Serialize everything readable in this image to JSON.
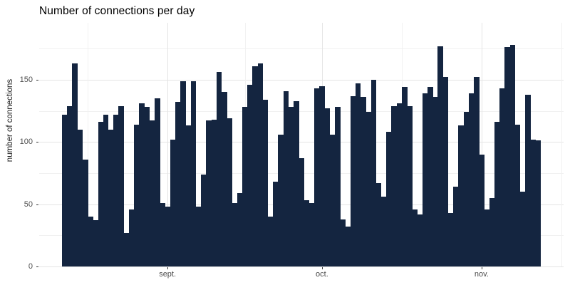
{
  "title": "Number of connections per day",
  "y_axis": {
    "label": "number of connections"
  },
  "chart_data": {
    "type": "bar",
    "title": "Number of connections per day",
    "xlabel": "",
    "ylabel": "number of connections",
    "bar_color": "#142540",
    "background": "#ffffff",
    "grid": "on",
    "legend": "none",
    "ylim": [
      0,
      195
    ],
    "y_major_ticks": [
      0,
      50,
      100,
      150
    ],
    "y_minor_ticks": [
      25,
      75,
      125,
      175
    ],
    "x_tick_labels": [
      "sept.",
      "oct.",
      "nov."
    ],
    "x_tick_day_offsets": [
      20.5,
      50.5,
      81.5
    ],
    "x_minor_day_offsets": [
      5,
      35.5,
      66,
      97
    ],
    "values": [
      122,
      129,
      163,
      110,
      86,
      40,
      37,
      116,
      122,
      110,
      122,
      129,
      27,
      46,
      114,
      131,
      128,
      117,
      135,
      51,
      48,
      102,
      132,
      149,
      113,
      149,
      48,
      74,
      117,
      118,
      156,
      140,
      119,
      51,
      59,
      128,
      146,
      161,
      163,
      134,
      40,
      68,
      106,
      141,
      128,
      133,
      87,
      53,
      51,
      143,
      145,
      127,
      106,
      128,
      38,
      32,
      137,
      147,
      136,
      124,
      150,
      67,
      56,
      108,
      129,
      131,
      144,
      129,
      46,
      42,
      139,
      144,
      136,
      177,
      152,
      43,
      64,
      113,
      124,
      139,
      152,
      90,
      46,
      55,
      116,
      143,
      176,
      178,
      114,
      60,
      138,
      102,
      101
    ]
  }
}
